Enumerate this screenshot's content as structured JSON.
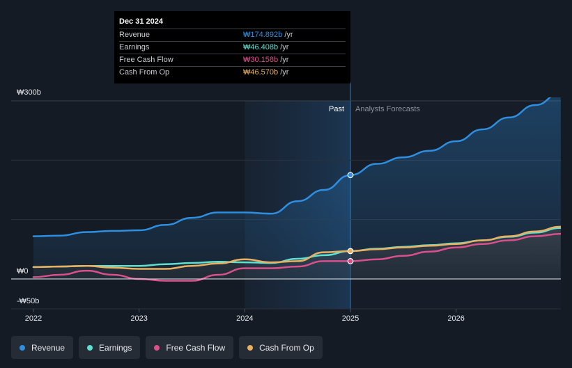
{
  "tooltip": {
    "date": "Dec 31 2024",
    "rows": [
      {
        "label": "Revenue",
        "value": "₩174.892b",
        "unit": " /yr",
        "color": "#2e8fe0"
      },
      {
        "label": "Earnings",
        "value": "₩46.408b",
        "unit": " /yr",
        "color": "#5ee0d0"
      },
      {
        "label": "Free Cash Flow",
        "value": "₩30.158b",
        "unit": " /yr",
        "color": "#d9508a"
      },
      {
        "label": "Cash From Op",
        "value": "₩46.570b",
        "unit": " /yr",
        "color": "#e8b060"
      }
    ]
  },
  "labels": {
    "past": "Past",
    "forecast": "Analysts Forecasts"
  },
  "legend": [
    {
      "label": "Revenue",
      "color": "#2e8fe0"
    },
    {
      "label": "Earnings",
      "color": "#5ee0d0"
    },
    {
      "label": "Free Cash Flow",
      "color": "#d9508a"
    },
    {
      "label": "Cash From Op",
      "color": "#e8b060"
    }
  ],
  "chart_data": {
    "type": "line",
    "title": "",
    "xlabel": "",
    "ylabel": "",
    "unit": "₩ billions",
    "ylim": [
      -50,
      300
    ],
    "xlim": [
      2021.9,
      2026.99
    ],
    "y_ticks": [
      {
        "value": 300,
        "label": "₩300b"
      },
      {
        "value": 0,
        "label": "₩0"
      },
      {
        "value": -50,
        "label": "-₩50b"
      }
    ],
    "x_ticks": [
      {
        "value": 2022,
        "label": "2022"
      },
      {
        "value": 2023,
        "label": "2023"
      },
      {
        "value": 2024,
        "label": "2024"
      },
      {
        "value": 2025,
        "label": "2025"
      },
      {
        "value": 2026,
        "label": "2026"
      }
    ],
    "past_end": 2025.0,
    "highlight_start": 2024.0,
    "series": [
      {
        "name": "Revenue",
        "color": "#2e8fe0",
        "fill": true,
        "points": [
          [
            2022.0,
            72
          ],
          [
            2022.25,
            73
          ],
          [
            2022.5,
            79
          ],
          [
            2022.75,
            81
          ],
          [
            2023.0,
            82
          ],
          [
            2023.25,
            91
          ],
          [
            2023.5,
            103
          ],
          [
            2023.75,
            112
          ],
          [
            2024.0,
            112
          ],
          [
            2024.25,
            110
          ],
          [
            2024.5,
            131
          ],
          [
            2024.75,
            150
          ],
          [
            2025.0,
            175
          ],
          [
            2025.25,
            194
          ],
          [
            2025.5,
            205
          ],
          [
            2025.75,
            216
          ],
          [
            2026.0,
            232
          ],
          [
            2026.25,
            252
          ],
          [
            2026.5,
            272
          ],
          [
            2026.75,
            293
          ],
          [
            2026.99,
            313
          ]
        ]
      },
      {
        "name": "Earnings",
        "color": "#5ee0d0",
        "fill": false,
        "points": [
          [
            2022.0,
            20
          ],
          [
            2022.25,
            21
          ],
          [
            2022.5,
            22
          ],
          [
            2022.75,
            22
          ],
          [
            2023.0,
            22
          ],
          [
            2023.25,
            25
          ],
          [
            2023.5,
            27
          ],
          [
            2023.75,
            29
          ],
          [
            2024.0,
            28
          ],
          [
            2024.25,
            27
          ],
          [
            2024.5,
            34
          ],
          [
            2024.75,
            40
          ],
          [
            2025.0,
            47
          ],
          [
            2025.25,
            51
          ],
          [
            2025.5,
            54
          ],
          [
            2025.75,
            57
          ],
          [
            2026.0,
            60
          ],
          [
            2026.25,
            65
          ],
          [
            2026.5,
            71
          ],
          [
            2026.75,
            78
          ],
          [
            2026.99,
            86
          ]
        ]
      },
      {
        "name": "Free Cash Flow",
        "color": "#d9508a",
        "fill": false,
        "points": [
          [
            2022.0,
            3
          ],
          [
            2022.25,
            7
          ],
          [
            2022.5,
            14
          ],
          [
            2022.75,
            7
          ],
          [
            2023.0,
            0
          ],
          [
            2023.25,
            -3
          ],
          [
            2023.5,
            -3
          ],
          [
            2023.75,
            7
          ],
          [
            2024.0,
            18
          ],
          [
            2024.25,
            18
          ],
          [
            2024.5,
            21
          ],
          [
            2024.75,
            30
          ],
          [
            2025.0,
            30
          ],
          [
            2025.25,
            33
          ],
          [
            2025.5,
            39
          ],
          [
            2025.75,
            46
          ],
          [
            2026.0,
            53
          ],
          [
            2026.25,
            59
          ],
          [
            2026.5,
            65
          ],
          [
            2026.75,
            72
          ],
          [
            2026.99,
            76
          ]
        ]
      },
      {
        "name": "Cash From Op",
        "color": "#e8b060",
        "fill": false,
        "points": [
          [
            2022.0,
            20
          ],
          [
            2022.25,
            21
          ],
          [
            2022.5,
            22
          ],
          [
            2022.75,
            19
          ],
          [
            2023.0,
            17
          ],
          [
            2023.25,
            17
          ],
          [
            2023.5,
            22
          ],
          [
            2023.75,
            26
          ],
          [
            2024.0,
            33
          ],
          [
            2024.25,
            28
          ],
          [
            2024.5,
            30
          ],
          [
            2024.75,
            45
          ],
          [
            2025.0,
            47
          ],
          [
            2025.25,
            50
          ],
          [
            2025.5,
            53
          ],
          [
            2025.75,
            56
          ],
          [
            2026.0,
            59
          ],
          [
            2026.25,
            65
          ],
          [
            2026.5,
            72
          ],
          [
            2026.75,
            80
          ],
          [
            2026.99,
            88
          ]
        ]
      }
    ]
  }
}
